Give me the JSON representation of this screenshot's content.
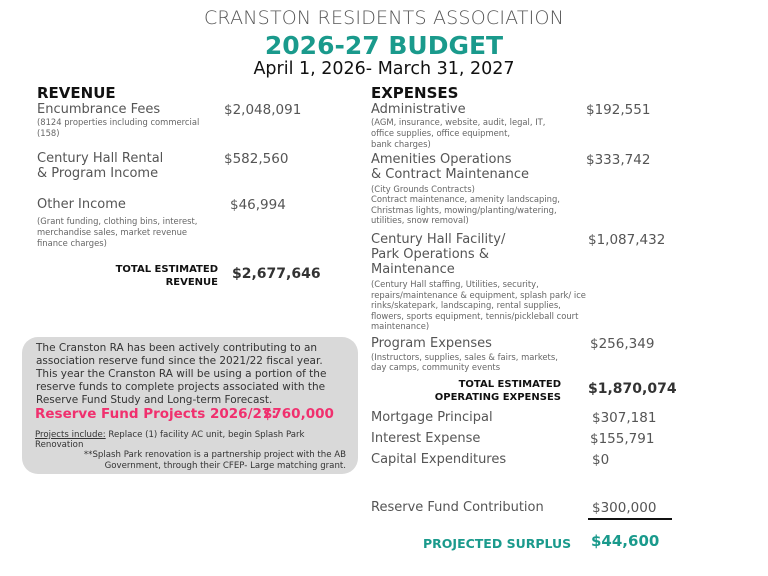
{
  "header": {
    "org": "CRANSTON RESIDENTS ASSOCIATION",
    "title": "2026-27 BUDGET",
    "period": "April 1, 2026- March 31, 2027"
  },
  "revenue": {
    "heading": "REVENUE",
    "items": [
      {
        "label": "Encumbrance Fees",
        "amount": "$2,048,091",
        "note": [
          "(8124 properties including commercial",
          "(158)"
        ]
      },
      {
        "label": [
          "Century Hall Rental",
          "& Program Income"
        ],
        "amount": "$582,560"
      },
      {
        "label": "Other Income",
        "amount": "$46,994",
        "note": [
          "(Grant funding, clothing bins, interest,",
          "merchandise  sales,  market  revenue",
          "finance charges)"
        ]
      }
    ],
    "total_label": [
      "TOTAL ESTIMATED",
      "REVENUE"
    ],
    "total_amount": "$2,677,646"
  },
  "reserve_box": {
    "text": [
      "The Cranston RA has been actively contributing to an",
      "association reserve fund since the 2021/22 fiscal year.",
      "This year the Cranston RA will be using a portion of the",
      "reserve funds to complete projects associated with the",
      "Reserve Fund Study and Long-term Forecast."
    ],
    "projects_heading": "Reserve Fund Projects 2026/27:",
    "projects_amount": "$760,000",
    "projects_label": "Projects include:",
    "projects_text": " Replace (1) facility AC unit, begin Splash Park",
    "projects_text2": "Renovation",
    "footnote": [
      "**Splash Park renovation is a partnership project with the AB",
      "Government, through their CFEP- Large matching grant."
    ]
  },
  "expenses": {
    "heading": "EXPENSES",
    "items": [
      {
        "label": "Administrative",
        "amount": "$192,551",
        "note": [
          "(AGM, insurance, website, audit, legal, IT,",
          "office supplies, office equipment,",
          "bank charges)"
        ]
      },
      {
        "label": [
          "Amenities Operations",
          "& Contract Maintenance"
        ],
        "amount": "$333,742",
        "note": [
          "(City Grounds Contracts)",
          "Contract maintenance, amenity landscaping,",
          "Christmas lights, mowing/planting/watering,",
          "utilities, snow removal)"
        ]
      },
      {
        "label": [
          "Century Hall Facility/",
          "Park Operations &",
          "Maintenance"
        ],
        "amount": "$1,087,432",
        "note": [
          "(Century Hall staffing, Utilities, security,",
          "repairs/maintenance & equipment, splash park/ ice",
          "rinks/skatepark, landscaping, rental supplies,",
          "flowers, sports equipment, tennis/pickleball court",
          "maintenance)"
        ]
      },
      {
        "label": "Program Expenses",
        "amount": "$256,349",
        "note": [
          "(Instructors, supplies, sales & fairs, markets,",
          "day camps, community events"
        ]
      }
    ],
    "total_label": [
      "TOTAL ESTIMATED",
      "OPERATING EXPENSES"
    ],
    "total_amount": "$1,870,074",
    "other": [
      {
        "label": "Mortgage Principal",
        "amount": "$307,181"
      },
      {
        "label": "Interest Expense",
        "amount": "$155,791"
      },
      {
        "label": "Capital Expenditures",
        "amount": "$0"
      },
      {
        "label": "Reserve Fund Contribution",
        "amount": "$300,000"
      }
    ],
    "surplus_label": "PROJECTED SURPLUS",
    "surplus_amount": "$44,600"
  },
  "colors": {
    "accent": "#1a9a8c",
    "highlight": "#f0306e",
    "box": "#d9d9d9"
  }
}
